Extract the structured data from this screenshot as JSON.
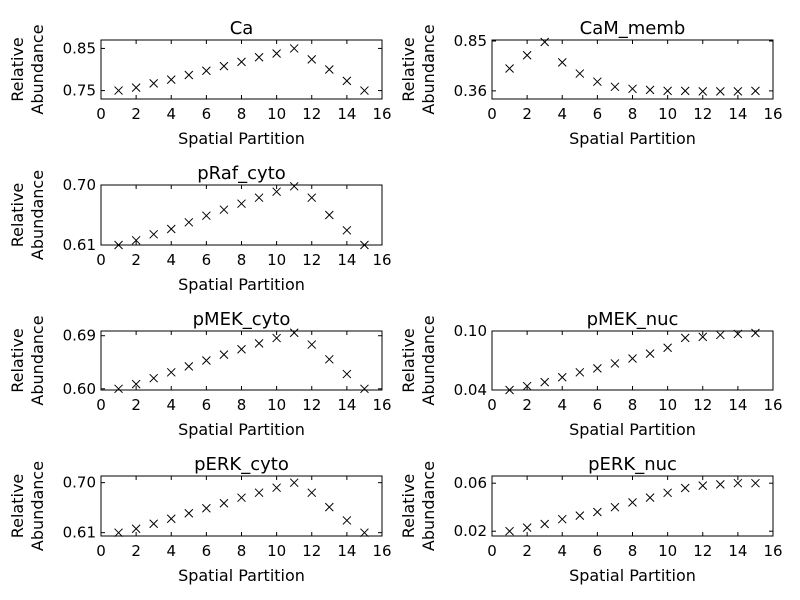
{
  "chart_data": [
    {
      "type": "scatter",
      "title": "Ca",
      "xlabel": "Spatial Partition",
      "ylabel": [
        "Relative",
        "Abundance"
      ],
      "xlim": [
        0,
        16
      ],
      "xticks": [
        "0",
        "2",
        "4",
        "6",
        "8",
        "10",
        "12",
        "14",
        "16"
      ],
      "ylim": [
        0.73,
        0.87
      ],
      "yticks": [
        {
          "v": 0.75,
          "label": "0.75"
        },
        {
          "v": 0.85,
          "label": "0.85"
        }
      ],
      "x": [
        1,
        2,
        3,
        4,
        5,
        6,
        7,
        8,
        9,
        10,
        11,
        12,
        13,
        14,
        15
      ],
      "y": [
        0.75,
        0.757,
        0.767,
        0.776,
        0.787,
        0.797,
        0.808,
        0.818,
        0.829,
        0.838,
        0.85,
        0.824,
        0.8,
        0.773,
        0.75
      ]
    },
    {
      "type": "scatter",
      "title": "CaM_memb",
      "xlabel": "Spatial Partition",
      "ylabel": [
        "Relative",
        "Abundance"
      ],
      "xlim": [
        0,
        16
      ],
      "xticks": [
        "0",
        "2",
        "4",
        "6",
        "8",
        "10",
        "12",
        "14",
        "16"
      ],
      "ylim": [
        0.28,
        0.86
      ],
      "yticks": [
        {
          "v": 0.36,
          "label": "0.36"
        },
        {
          "v": 0.85,
          "label": "0.85"
        }
      ],
      "x": [
        1,
        2,
        3,
        4,
        5,
        6,
        7,
        8,
        9,
        10,
        11,
        12,
        13,
        14,
        15
      ],
      "y": [
        0.58,
        0.71,
        0.84,
        0.64,
        0.53,
        0.45,
        0.4,
        0.38,
        0.37,
        0.36,
        0.36,
        0.355,
        0.355,
        0.355,
        0.36
      ]
    },
    {
      "type": "scatter",
      "title": "pRaf_cyto",
      "xlabel": "Spatial Partition",
      "ylabel": [
        "Relative",
        "Abundance"
      ],
      "xlim": [
        0,
        16
      ],
      "xticks": [
        "0",
        "2",
        "4",
        "6",
        "8",
        "10",
        "12",
        "14",
        "16"
      ],
      "ylim": [
        0.61,
        0.7
      ],
      "yticks": [
        {
          "v": 0.61,
          "label": "0.61"
        },
        {
          "v": 0.7,
          "label": "0.70"
        }
      ],
      "x": [
        1,
        2,
        3,
        4,
        5,
        6,
        7,
        8,
        9,
        10,
        11,
        12,
        13,
        14,
        15
      ],
      "y": [
        0.61,
        0.617,
        0.626,
        0.634,
        0.644,
        0.654,
        0.663,
        0.672,
        0.681,
        0.69,
        0.698,
        0.681,
        0.655,
        0.632,
        0.61
      ]
    },
    {
      "type": "scatter",
      "title": "pMEK_cyto",
      "xlabel": "Spatial Partition",
      "ylabel": [
        "Relative",
        "Abundance"
      ],
      "xlim": [
        0,
        16
      ],
      "xticks": [
        "0",
        "2",
        "4",
        "6",
        "8",
        "10",
        "12",
        "14",
        "16"
      ],
      "ylim": [
        0.598,
        0.698
      ],
      "yticks": [
        {
          "v": 0.6,
          "label": "0.60"
        },
        {
          "v": 0.69,
          "label": "0.69"
        }
      ],
      "x": [
        1,
        2,
        3,
        4,
        5,
        6,
        7,
        8,
        9,
        10,
        11,
        12,
        13,
        14,
        15
      ],
      "y": [
        0.6,
        0.608,
        0.618,
        0.628,
        0.638,
        0.648,
        0.658,
        0.667,
        0.677,
        0.686,
        0.695,
        0.675,
        0.65,
        0.625,
        0.6
      ]
    },
    {
      "type": "scatter",
      "title": "pMEK_nuc",
      "xlabel": "Spatial Partition",
      "ylabel": [
        "Relative",
        "Abundance"
      ],
      "xlim": [
        0,
        16
      ],
      "xticks": [
        "0",
        "2",
        "4",
        "6",
        "8",
        "10",
        "12",
        "14",
        "16"
      ],
      "ylim": [
        0.04,
        0.1
      ],
      "yticks": [
        {
          "v": 0.04,
          "label": "0.04"
        },
        {
          "v": 0.1,
          "label": "0.10"
        }
      ],
      "x": [
        1,
        2,
        3,
        4,
        5,
        6,
        7,
        8,
        9,
        10,
        11,
        12,
        13,
        14,
        15
      ],
      "y": [
        0.04,
        0.044,
        0.048,
        0.053,
        0.058,
        0.062,
        0.067,
        0.072,
        0.077,
        0.083,
        0.093,
        0.094,
        0.096,
        0.097,
        0.098
      ]
    },
    {
      "type": "scatter",
      "title": "pERK_cyto",
      "xlabel": "Spatial Partition",
      "ylabel": [
        "Relative",
        "Abundance"
      ],
      "xlim": [
        0,
        16
      ],
      "xticks": [
        "0",
        "2",
        "4",
        "6",
        "8",
        "10",
        "12",
        "14",
        "16"
      ],
      "ylim": [
        0.604,
        0.712
      ],
      "yticks": [
        {
          "v": 0.61,
          "label": "0.61"
        },
        {
          "v": 0.7,
          "label": "0.70"
        }
      ],
      "x": [
        1,
        2,
        3,
        4,
        5,
        6,
        7,
        8,
        9,
        10,
        11,
        12,
        13,
        14,
        15
      ],
      "y": [
        0.61,
        0.617,
        0.626,
        0.635,
        0.645,
        0.654,
        0.663,
        0.673,
        0.682,
        0.691,
        0.7,
        0.682,
        0.656,
        0.632,
        0.61
      ]
    },
    {
      "type": "scatter",
      "title": "pERK_nuc",
      "xlabel": "Spatial Partition",
      "ylabel": [
        "Relative",
        "Abundance"
      ],
      "xlim": [
        0,
        16
      ],
      "xticks": [
        "0",
        "2",
        "4",
        "6",
        "8",
        "10",
        "12",
        "14",
        "16"
      ],
      "ylim": [
        0.016,
        0.066
      ],
      "yticks": [
        {
          "v": 0.02,
          "label": "0.02"
        },
        {
          "v": 0.06,
          "label": "0.06"
        }
      ],
      "x": [
        1,
        2,
        3,
        4,
        5,
        6,
        7,
        8,
        9,
        10,
        11,
        12,
        13,
        14,
        15
      ],
      "y": [
        0.02,
        0.023,
        0.026,
        0.03,
        0.033,
        0.036,
        0.04,
        0.044,
        0.048,
        0.052,
        0.056,
        0.058,
        0.059,
        0.06,
        0.06
      ]
    }
  ]
}
